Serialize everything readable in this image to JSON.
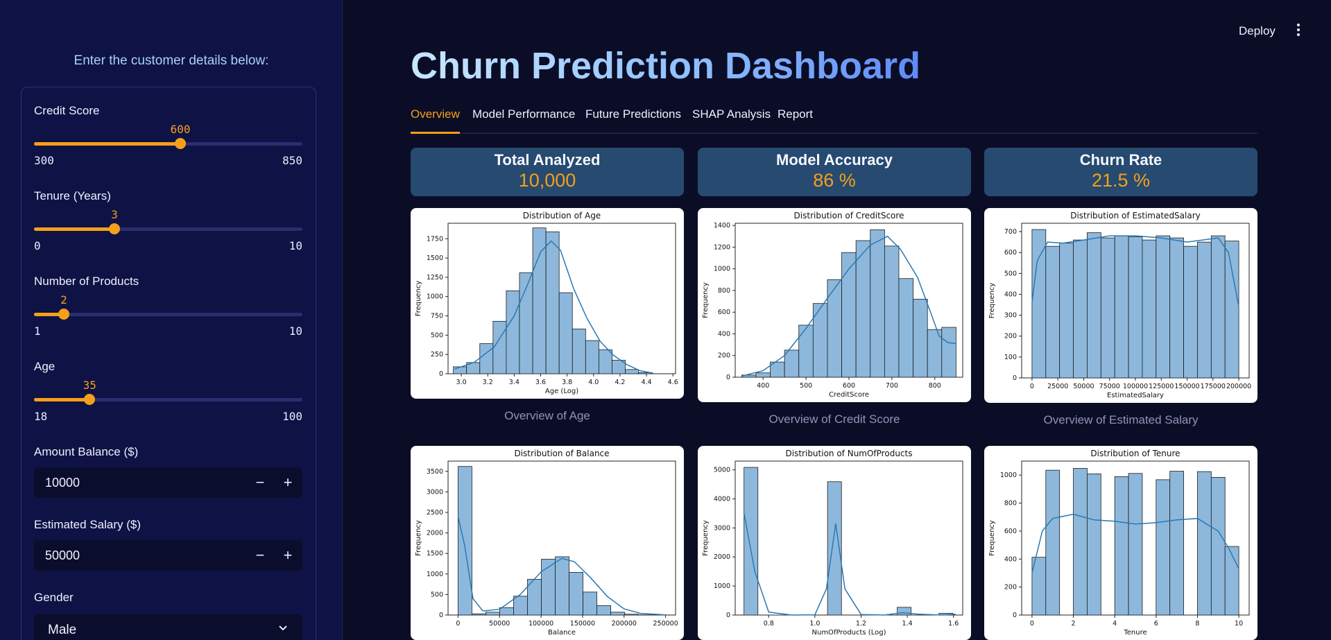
{
  "sidebar": {
    "title": "Enter the customer details below:",
    "sliders": [
      {
        "label": "Credit Score",
        "value": 600,
        "min": 300,
        "max": 850
      },
      {
        "label": "Tenure (Years)",
        "value": 3,
        "min": 0,
        "max": 10
      },
      {
        "label": "Number of Products",
        "value": 2,
        "min": 1,
        "max": 10
      },
      {
        "label": "Age",
        "value": 35,
        "min": 18,
        "max": 100
      }
    ],
    "balance": {
      "label": "Amount Balance ($)",
      "value": "10000"
    },
    "salary": {
      "label": "Estimated Salary ($)",
      "value": "50000"
    },
    "gender": {
      "label": "Gender",
      "value": "Male"
    },
    "accent": "#f5a01a"
  },
  "header": {
    "deploy": "Deploy"
  },
  "main": {
    "title": "Churn Prediction Dashboard",
    "tabs": [
      "Overview",
      "Model Performance",
      "Future Predictions",
      "SHAP Analysis",
      "Report"
    ],
    "metrics": [
      {
        "label": "Total Analyzed",
        "value": "10,000"
      },
      {
        "label": "Model Accuracy",
        "value": "86 %"
      },
      {
        "label": "Churn Rate",
        "value": "21.5 %"
      }
    ],
    "captions": [
      "Overview of Age",
      "Overview of Credit Score",
      "Overview of Estimated Salary"
    ]
  },
  "chart_data": [
    {
      "type": "bar",
      "title": "Distribution of Age",
      "xlabel": "Age (Log)",
      "ylabel": "Frequency",
      "xlim": [
        2.9,
        4.62
      ],
      "ylim": [
        0,
        1950
      ],
      "xticks": [
        3.0,
        3.2,
        3.4,
        3.6,
        3.8,
        4.0,
        4.2,
        4.4,
        4.6
      ],
      "xtick_labels": [
        "3.0",
        "3.2",
        "3.4",
        "3.6",
        "3.8",
        "4.0",
        "4.2",
        "4.4",
        "4.6"
      ],
      "yticks": [
        0,
        250,
        500,
        750,
        1000,
        1250,
        1500,
        1750
      ],
      "bin_start": 2.94,
      "bin_width": 0.1,
      "values": [
        90,
        145,
        390,
        680,
        1075,
        1310,
        1890,
        1840,
        1050,
        580,
        430,
        310,
        175,
        55,
        15
      ],
      "kde": [
        [
          2.95,
          60
        ],
        [
          3.1,
          150
        ],
        [
          3.25,
          350
        ],
        [
          3.4,
          750
        ],
        [
          3.5,
          1150
        ],
        [
          3.6,
          1580
        ],
        [
          3.68,
          1720
        ],
        [
          3.75,
          1600
        ],
        [
          3.85,
          1100
        ],
        [
          3.95,
          720
        ],
        [
          4.05,
          420
        ],
        [
          4.15,
          240
        ],
        [
          4.25,
          120
        ],
        [
          4.35,
          40
        ],
        [
          4.45,
          8
        ]
      ]
    },
    {
      "type": "bar",
      "title": "Distribution of CreditScore",
      "xlabel": "CreditScore",
      "ylabel": "Frequency",
      "xlim": [
        335,
        865
      ],
      "ylim": [
        0,
        1420
      ],
      "xticks": [
        400,
        500,
        600,
        700,
        800
      ],
      "xtick_labels": [
        "400",
        "500",
        "600",
        "700",
        "800"
      ],
      "yticks": [
        0,
        200,
        400,
        600,
        800,
        1000,
        1200,
        1400
      ],
      "bin_start": 350,
      "bin_width": 33.3,
      "values": [
        20,
        40,
        140,
        250,
        480,
        680,
        900,
        1150,
        1260,
        1360,
        1210,
        910,
        720,
        440,
        460
      ],
      "kde": [
        [
          350,
          10
        ],
        [
          400,
          60
        ],
        [
          450,
          200
        ],
        [
          500,
          450
        ],
        [
          550,
          730
        ],
        [
          600,
          1000
        ],
        [
          650,
          1220
        ],
        [
          690,
          1300
        ],
        [
          720,
          1180
        ],
        [
          760,
          920
        ],
        [
          790,
          600
        ],
        [
          810,
          380
        ],
        [
          830,
          320
        ],
        [
          850,
          310
        ]
      ]
    },
    {
      "type": "bar",
      "title": "Distribution of EstimatedSalary",
      "xlabel": "EstimatedSalary",
      "ylabel": "Frequency",
      "xlim": [
        -10000,
        210000
      ],
      "ylim": [
        0,
        740
      ],
      "xticks": [
        0,
        25000,
        50000,
        75000,
        100000,
        125000,
        150000,
        175000,
        200000
      ],
      "xtick_labels": [
        "0",
        "25000",
        "50000",
        "75000",
        "100000",
        "125000",
        "150000",
        "175000",
        "200000"
      ],
      "yticks": [
        0,
        100,
        200,
        300,
        400,
        500,
        600,
        700
      ],
      "bin_start": 0,
      "bin_width": 13333,
      "values": [
        710,
        630,
        645,
        660,
        695,
        670,
        680,
        675,
        660,
        680,
        670,
        630,
        650,
        680,
        655
      ],
      "kde": [
        [
          0,
          360
        ],
        [
          5000,
          560
        ],
        [
          15000,
          650
        ],
        [
          30000,
          645
        ],
        [
          50000,
          660
        ],
        [
          75000,
          680
        ],
        [
          100000,
          680
        ],
        [
          125000,
          670
        ],
        [
          150000,
          650
        ],
        [
          165000,
          660
        ],
        [
          180000,
          670
        ],
        [
          190000,
          600
        ],
        [
          200000,
          340
        ]
      ]
    },
    {
      "type": "bar",
      "title": "Distribution of Balance",
      "xlabel": "Balance",
      "ylabel": "Frequency",
      "xlim": [
        -12000,
        262000
      ],
      "ylim": [
        0,
        3750
      ],
      "xticks": [
        0,
        50000,
        100000,
        150000,
        200000,
        250000
      ],
      "xtick_labels": [
        "0",
        "50000",
        "100000",
        "150000",
        "200000",
        "250000"
      ],
      "yticks": [
        0,
        500,
        1000,
        1500,
        2000,
        2500,
        3000,
        3500
      ],
      "bin_start": 0,
      "bin_width": 16726,
      "values": [
        3620,
        30,
        70,
        180,
        460,
        870,
        1360,
        1420,
        1040,
        560,
        230,
        70,
        20,
        5,
        2
      ],
      "kde": [
        [
          0,
          2400
        ],
        [
          8000,
          1700
        ],
        [
          18000,
          400
        ],
        [
          30000,
          100
        ],
        [
          50000,
          140
        ],
        [
          75000,
          500
        ],
        [
          100000,
          1050
        ],
        [
          125000,
          1380
        ],
        [
          140000,
          1300
        ],
        [
          160000,
          900
        ],
        [
          180000,
          450
        ],
        [
          200000,
          150
        ],
        [
          220000,
          40
        ],
        [
          250000,
          5
        ]
      ]
    },
    {
      "type": "bar",
      "title": "Distribution of NumOfProducts",
      "xlabel": "NumOfProducts (Log)",
      "ylabel": "Frequency",
      "xlim": [
        0.655,
        1.64
      ],
      "ylim": [
        0,
        5300
      ],
      "xticks": [
        0.8,
        1.0,
        1.2,
        1.4,
        1.6
      ],
      "xtick_labels": [
        "0.8",
        "1.0",
        "1.2",
        "1.4",
        "1.6"
      ],
      "yticks": [
        0,
        1000,
        2000,
        3000,
        4000,
        5000
      ],
      "bin_start": 0.693,
      "bin_width": 0.0603,
      "values": [
        5084,
        0,
        0,
        0,
        0,
        0,
        4590,
        0,
        0,
        0,
        0,
        266,
        0,
        0,
        60
      ],
      "kde": [
        [
          0.693,
          3500
        ],
        [
          0.74,
          1500
        ],
        [
          0.8,
          100
        ],
        [
          0.9,
          0
        ],
        [
          1.0,
          10
        ],
        [
          1.05,
          900
        ],
        [
          1.09,
          3150
        ],
        [
          1.13,
          900
        ],
        [
          1.2,
          20
        ],
        [
          1.3,
          0
        ],
        [
          1.38,
          80
        ],
        [
          1.45,
          30
        ],
        [
          1.55,
          0
        ],
        [
          1.609,
          30
        ]
      ]
    },
    {
      "type": "bar",
      "title": "Distribution of Tenure",
      "xlabel": "Tenure",
      "ylabel": "Frequency",
      "xlim": [
        -0.5,
        10.5
      ],
      "ylim": [
        0,
        1100
      ],
      "xticks": [
        0,
        2,
        4,
        6,
        8,
        10
      ],
      "xtick_labels": [
        "0",
        "2",
        "4",
        "6",
        "8",
        "10"
      ],
      "yticks": [
        0,
        200,
        400,
        600,
        800,
        1000
      ],
      "bin_start": 0,
      "bin_width": 0.6667,
      "values": [
        413,
        1035,
        0,
        1048,
        1009,
        0,
        989,
        1012,
        0,
        967,
        1028,
        0,
        1025,
        984,
        490
      ],
      "kde": [
        [
          0,
          300
        ],
        [
          0.5,
          600
        ],
        [
          1,
          690
        ],
        [
          2,
          720
        ],
        [
          3,
          680
        ],
        [
          4,
          670
        ],
        [
          5,
          650
        ],
        [
          6,
          660
        ],
        [
          7,
          680
        ],
        [
          8,
          690
        ],
        [
          9,
          600
        ],
        [
          9.5,
          480
        ],
        [
          10,
          330
        ]
      ]
    }
  ]
}
